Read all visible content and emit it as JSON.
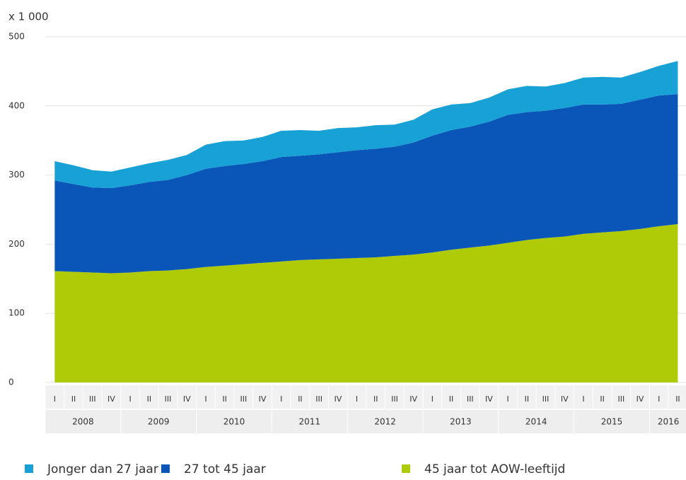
{
  "chart_data": {
    "type": "stacked_area",
    "y_unit": "x 1 000",
    "categories": [
      "I",
      "II",
      "III",
      "IV",
      "I",
      "II",
      "III",
      "IV",
      "I",
      "II",
      "III",
      "IV",
      "I",
      "II",
      "III",
      "IV",
      "I",
      "II",
      "III",
      "IV",
      "I",
      "II",
      "III",
      "IV",
      "I",
      "II",
      "III",
      "IV",
      "I",
      "II",
      "III",
      "IV",
      "I",
      "II"
    ],
    "years": [
      "2008",
      "2009",
      "2010",
      "2011",
      "2012",
      "2013",
      "2014",
      "2015",
      "2016"
    ],
    "series": [
      {
        "name": "Jonger dan 27 jaar",
        "color": "#18a1d5",
        "values": [
          28,
          27,
          25,
          24,
          26,
          27,
          29,
          29,
          35,
          36,
          34,
          35,
          38,
          37,
          34,
          35,
          33,
          34,
          32,
          33,
          38,
          37,
          34,
          35,
          37,
          38,
          35,
          36,
          39,
          40,
          38,
          40,
          43,
          48
        ]
      },
      {
        "name": "27 tot 45 jaar",
        "color": "#0a56b8",
        "values": [
          131,
          127,
          123,
          123,
          126,
          129,
          131,
          136,
          142,
          144,
          145,
          147,
          151,
          151,
          152,
          154,
          156,
          157,
          158,
          162,
          169,
          173,
          175,
          179,
          185,
          185,
          184,
          186,
          187,
          185,
          184,
          187,
          189,
          188
        ]
      },
      {
        "name": "45 jaar tot AOW-leeftijd",
        "color": "#afcb07",
        "values": [
          161,
          160,
          159,
          158,
          159,
          161,
          162,
          164,
          167,
          169,
          171,
          173,
          175,
          177,
          178,
          179,
          180,
          181,
          183,
          185,
          188,
          192,
          195,
          198,
          202,
          206,
          209,
          211,
          215,
          217,
          219,
          222,
          226,
          229
        ]
      }
    ],
    "ylim": [
      0,
      500
    ],
    "yticks": [
      0,
      100,
      200,
      300,
      400,
      500
    ],
    "grid": true
  }
}
